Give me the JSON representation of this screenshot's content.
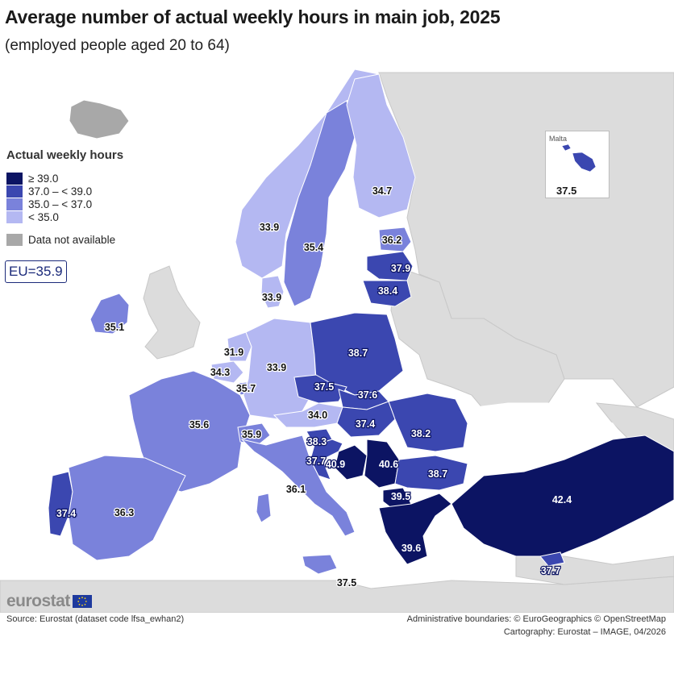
{
  "title": "Average number of actual weekly hours in main job, 2025",
  "subtitle": "(employed people aged 20 to 64)",
  "legend": {
    "title": "Actual weekly hours",
    "items": [
      {
        "label": "≥ 39.0",
        "color": "#0c1463"
      },
      {
        "label": "37.0 – < 39.0",
        "color": "#3b47b0"
      },
      {
        "label": "35.0 – < 37.0",
        "color": "#7a82db"
      },
      {
        "label": "< 35.0",
        "color": "#b4b8f2"
      }
    ],
    "na": {
      "label": "Data not available",
      "color": "#a8a8a8"
    }
  },
  "eu_average": "EU=35.9",
  "malta_inset": {
    "name": "Malta",
    "value": "37.5"
  },
  "countries": [
    {
      "name": "Iceland",
      "value": null,
      "class": "na"
    },
    {
      "name": "Ireland",
      "value": "35.1",
      "class": "c3"
    },
    {
      "name": "Norway",
      "value": "33.9",
      "class": "c4"
    },
    {
      "name": "Sweden",
      "value": "35.4",
      "class": "c3"
    },
    {
      "name": "Finland",
      "value": "34.7",
      "class": "c4"
    },
    {
      "name": "Estonia",
      "value": "36.2",
      "class": "c3"
    },
    {
      "name": "Latvia",
      "value": "37.9",
      "class": "c2"
    },
    {
      "name": "Lithuania",
      "value": "38.4",
      "class": "c2"
    },
    {
      "name": "Denmark",
      "value": "33.9",
      "class": "c4"
    },
    {
      "name": "Netherlands",
      "value": "31.9",
      "class": "c4"
    },
    {
      "name": "Belgium",
      "value": "34.3",
      "class": "c4"
    },
    {
      "name": "Luxembourg",
      "value": "35.7",
      "class": "c3"
    },
    {
      "name": "Germany",
      "value": "33.9",
      "class": "c4"
    },
    {
      "name": "Poland",
      "value": "38.7",
      "class": "c2"
    },
    {
      "name": "Czechia",
      "value": "37.5",
      "class": "c2"
    },
    {
      "name": "Slovakia",
      "value": "37.6",
      "class": "c2"
    },
    {
      "name": "Austria",
      "value": "34.0",
      "class": "c4"
    },
    {
      "name": "Hungary",
      "value": "37.4",
      "class": "c2"
    },
    {
      "name": "Romania",
      "value": "38.2",
      "class": "c2"
    },
    {
      "name": "France",
      "value": "35.6",
      "class": "c3"
    },
    {
      "name": "Switzerland",
      "value": "35.9",
      "class": "c3"
    },
    {
      "name": "Slovenia",
      "value": "38.3",
      "class": "c2"
    },
    {
      "name": "Croatia",
      "value": "37.7",
      "class": "c2"
    },
    {
      "name": "Bosnia and Herzegovina",
      "value": "40.9",
      "class": "c1"
    },
    {
      "name": "Serbia",
      "value": "40.6",
      "class": "c1"
    },
    {
      "name": "Bulgaria",
      "value": "38.7",
      "class": "c2"
    },
    {
      "name": "North Macedonia",
      "value": "39.5",
      "class": "c1"
    },
    {
      "name": "Greece",
      "value": "39.6",
      "class": "c1"
    },
    {
      "name": "Türkiye",
      "value": "42.4",
      "class": "c1"
    },
    {
      "name": "Cyprus",
      "value": "37.7",
      "class": "c2"
    },
    {
      "name": "Italy",
      "value": "36.1",
      "class": "c3"
    },
    {
      "name": "Malta",
      "value": "37.5",
      "class": "c2"
    },
    {
      "name": "Portugal",
      "value": "37.4",
      "class": "c2"
    },
    {
      "name": "Spain",
      "value": "36.3",
      "class": "c3"
    }
  ],
  "logo": "eurostat",
  "source": "Source: Eurostat (dataset code lfsa_ewhan2)",
  "credit_line1": "Administrative boundaries: © EuroGeographics © OpenStreetMap",
  "credit_line2": "Cartography: Eurostat – IMAGE, 04/2026"
}
